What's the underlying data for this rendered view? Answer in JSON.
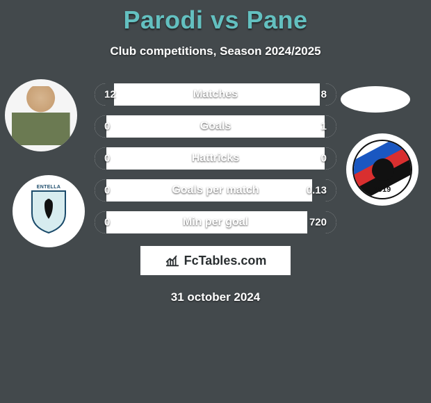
{
  "title": "Parodi vs Pane",
  "subtitle": "Club competitions, Season 2024/2025",
  "date": "31 october 2024",
  "branding": {
    "label": "FcTables.com"
  },
  "colors": {
    "page_bg": "#43494c",
    "title_color": "#63c0c0",
    "text_color": "#ffffff",
    "pill_bg": "#ffffff",
    "pill_fill": "#43494c",
    "branding_bg": "#ffffff",
    "branding_text": "#2a2f31"
  },
  "left_club": {
    "badge_text": "ENTELLA"
  },
  "right_club": {
    "year": "1919",
    "band_colors": [
      "#1a57c1",
      "#d92f2f",
      "#111111"
    ]
  },
  "stats": {
    "pill_width": 348,
    "pill_height": 32,
    "pill_gap": 14,
    "rows": [
      {
        "label": "Matches",
        "left": "12",
        "right": "8",
        "left_pct": 8,
        "right_pct": 7
      },
      {
        "label": "Goals",
        "left": "0",
        "right": "1",
        "left_pct": 5,
        "right_pct": 5
      },
      {
        "label": "Hattricks",
        "left": "0",
        "right": "0",
        "left_pct": 5,
        "right_pct": 5
      },
      {
        "label": "Goals per match",
        "left": "0",
        "right": "0.13",
        "left_pct": 5,
        "right_pct": 10
      },
      {
        "label": "Min per goal",
        "left": "0",
        "right": "720",
        "left_pct": 5,
        "right_pct": 12
      }
    ]
  }
}
